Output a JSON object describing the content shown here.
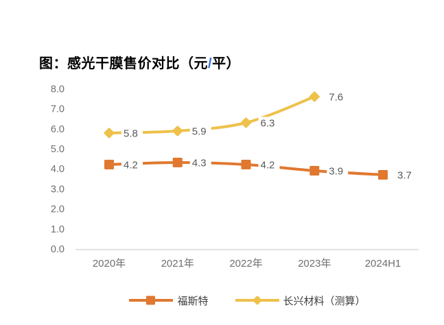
{
  "title": {
    "prefix": "图：感光干膜售价对比（元",
    "slash": "/",
    "suffix": "平）"
  },
  "chart_data": {
    "type": "line",
    "title": "图：感光干膜售价对比（元/平）",
    "categories": [
      "2020年",
      "2021年",
      "2022年",
      "2023年",
      "2024H1"
    ],
    "series": [
      {
        "name": "福斯特",
        "marker": "square",
        "color": "#E0782F",
        "values": [
          4.2,
          4.3,
          4.2,
          3.9,
          3.7
        ],
        "data_labels": [
          "4.2",
          "4.3",
          "4.2",
          "3.9",
          "3.7"
        ]
      },
      {
        "name": "长兴材料（测算）",
        "marker": "diamond",
        "color": "#EEC14B",
        "values": [
          5.8,
          5.9,
          6.3,
          7.6,
          null
        ],
        "data_labels": [
          "5.8",
          "5.9",
          "6.3",
          "7.6",
          null
        ]
      }
    ],
    "ylim": [
      0,
      8
    ],
    "yticks": [
      0,
      1,
      2,
      3,
      4,
      5,
      6,
      7,
      8
    ],
    "ytick_labels": [
      "0.0",
      "1.0",
      "2.0",
      "3.0",
      "4.0",
      "5.0",
      "6.0",
      "7.0",
      "8.0"
    ],
    "grid": false,
    "legend_position": "bottom",
    "styles": {
      "background": "#FFFFFF",
      "title_color": "#000000",
      "title_slash_color": "#3A6FD8",
      "axis_line_color": "#D9D9D9",
      "tick_label_color": "#6E6E6E",
      "data_label_color": "#595959",
      "legend_text_color": "#3F3F3F"
    }
  }
}
